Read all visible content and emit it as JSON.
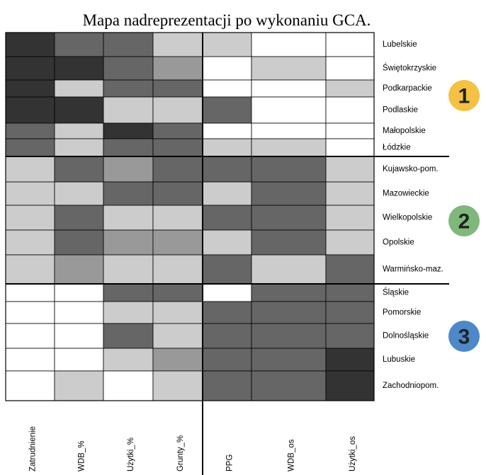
{
  "title": "Mapa nadreprezentacji po wykonaniu GCA.",
  "columns": [
    "Zatrudnienie",
    "WDB_%",
    "Użytki_%",
    "Grunty_%",
    "PPG",
    "WDB_os",
    "Użytki_os"
  ],
  "rows": [
    {
      "label": "Lubelskie",
      "cells": [
        "#333333",
        "#666666",
        "#666666",
        "#cccccc",
        "#cccccc",
        "#ffffff",
        "#ffffff"
      ]
    },
    {
      "label": "Świętokrzyskie",
      "cells": [
        "#333333",
        "#333333",
        "#666666",
        "#999999",
        "#ffffff",
        "#cccccc",
        "#ffffff"
      ]
    },
    {
      "label": "Podkarpackie",
      "cells": [
        "#333333",
        "#cccccc",
        "#666666",
        "#666666",
        "#ffffff",
        "#ffffff",
        "#cccccc"
      ]
    },
    {
      "label": "Podlaskie",
      "cells": [
        "#333333",
        "#333333",
        "#cccccc",
        "#cccccc",
        "#666666",
        "#ffffff",
        "#ffffff"
      ]
    },
    {
      "label": "Małopolskie",
      "cells": [
        "#666666",
        "#cccccc",
        "#333333",
        "#666666",
        "#ffffff",
        "#ffffff",
        "#ffffff"
      ]
    },
    {
      "label": "Łódzkie",
      "cells": [
        "#666666",
        "#cccccc",
        "#666666",
        "#666666",
        "#cccccc",
        "#cccccc",
        "#ffffff"
      ]
    },
    {
      "label": "Kujawsko-pom.",
      "cells": [
        "#cccccc",
        "#666666",
        "#999999",
        "#666666",
        "#666666",
        "#666666",
        "#cccccc"
      ]
    },
    {
      "label": "Mazowieckie",
      "cells": [
        "#cccccc",
        "#cccccc",
        "#666666",
        "#666666",
        "#cccccc",
        "#666666",
        "#cccccc"
      ]
    },
    {
      "label": "Wielkopolskie",
      "cells": [
        "#cccccc",
        "#666666",
        "#cccccc",
        "#cccccc",
        "#666666",
        "#666666",
        "#cccccc"
      ]
    },
    {
      "label": "Opolskie",
      "cells": [
        "#cccccc",
        "#666666",
        "#999999",
        "#999999",
        "#cccccc",
        "#666666",
        "#cccccc"
      ]
    },
    {
      "label": "Warmińsko-maz.",
      "cells": [
        "#cccccc",
        "#999999",
        "#cccccc",
        "#cccccc",
        "#666666",
        "#cccccc",
        "#666666"
      ]
    },
    {
      "label": "Śląskie",
      "cells": [
        "#ffffff",
        "#ffffff",
        "#666666",
        "#666666",
        "#ffffff",
        "#666666",
        "#666666"
      ]
    },
    {
      "label": "Pomorskie",
      "cells": [
        "#ffffff",
        "#ffffff",
        "#cccccc",
        "#cccccc",
        "#666666",
        "#666666",
        "#666666"
      ]
    },
    {
      "label": "Dolnośląskie",
      "cells": [
        "#ffffff",
        "#ffffff",
        "#666666",
        "#cccccc",
        "#666666",
        "#666666",
        "#666666"
      ]
    },
    {
      "label": "Lubuskie",
      "cells": [
        "#ffffff",
        "#ffffff",
        "#cccccc",
        "#999999",
        "#666666",
        "#666666",
        "#333333"
      ]
    },
    {
      "label": "Zachodniopom.",
      "cells": [
        "#ffffff",
        "#cccccc",
        "#ffffff",
        "#cccccc",
        "#666666",
        "#666666",
        "#333333"
      ]
    }
  ],
  "groups": [
    {
      "label": "1",
      "color": "#f4c145"
    },
    {
      "label": "2",
      "color": "#80b87c"
    },
    {
      "label": "3",
      "color": "#4d88c8"
    }
  ]
}
